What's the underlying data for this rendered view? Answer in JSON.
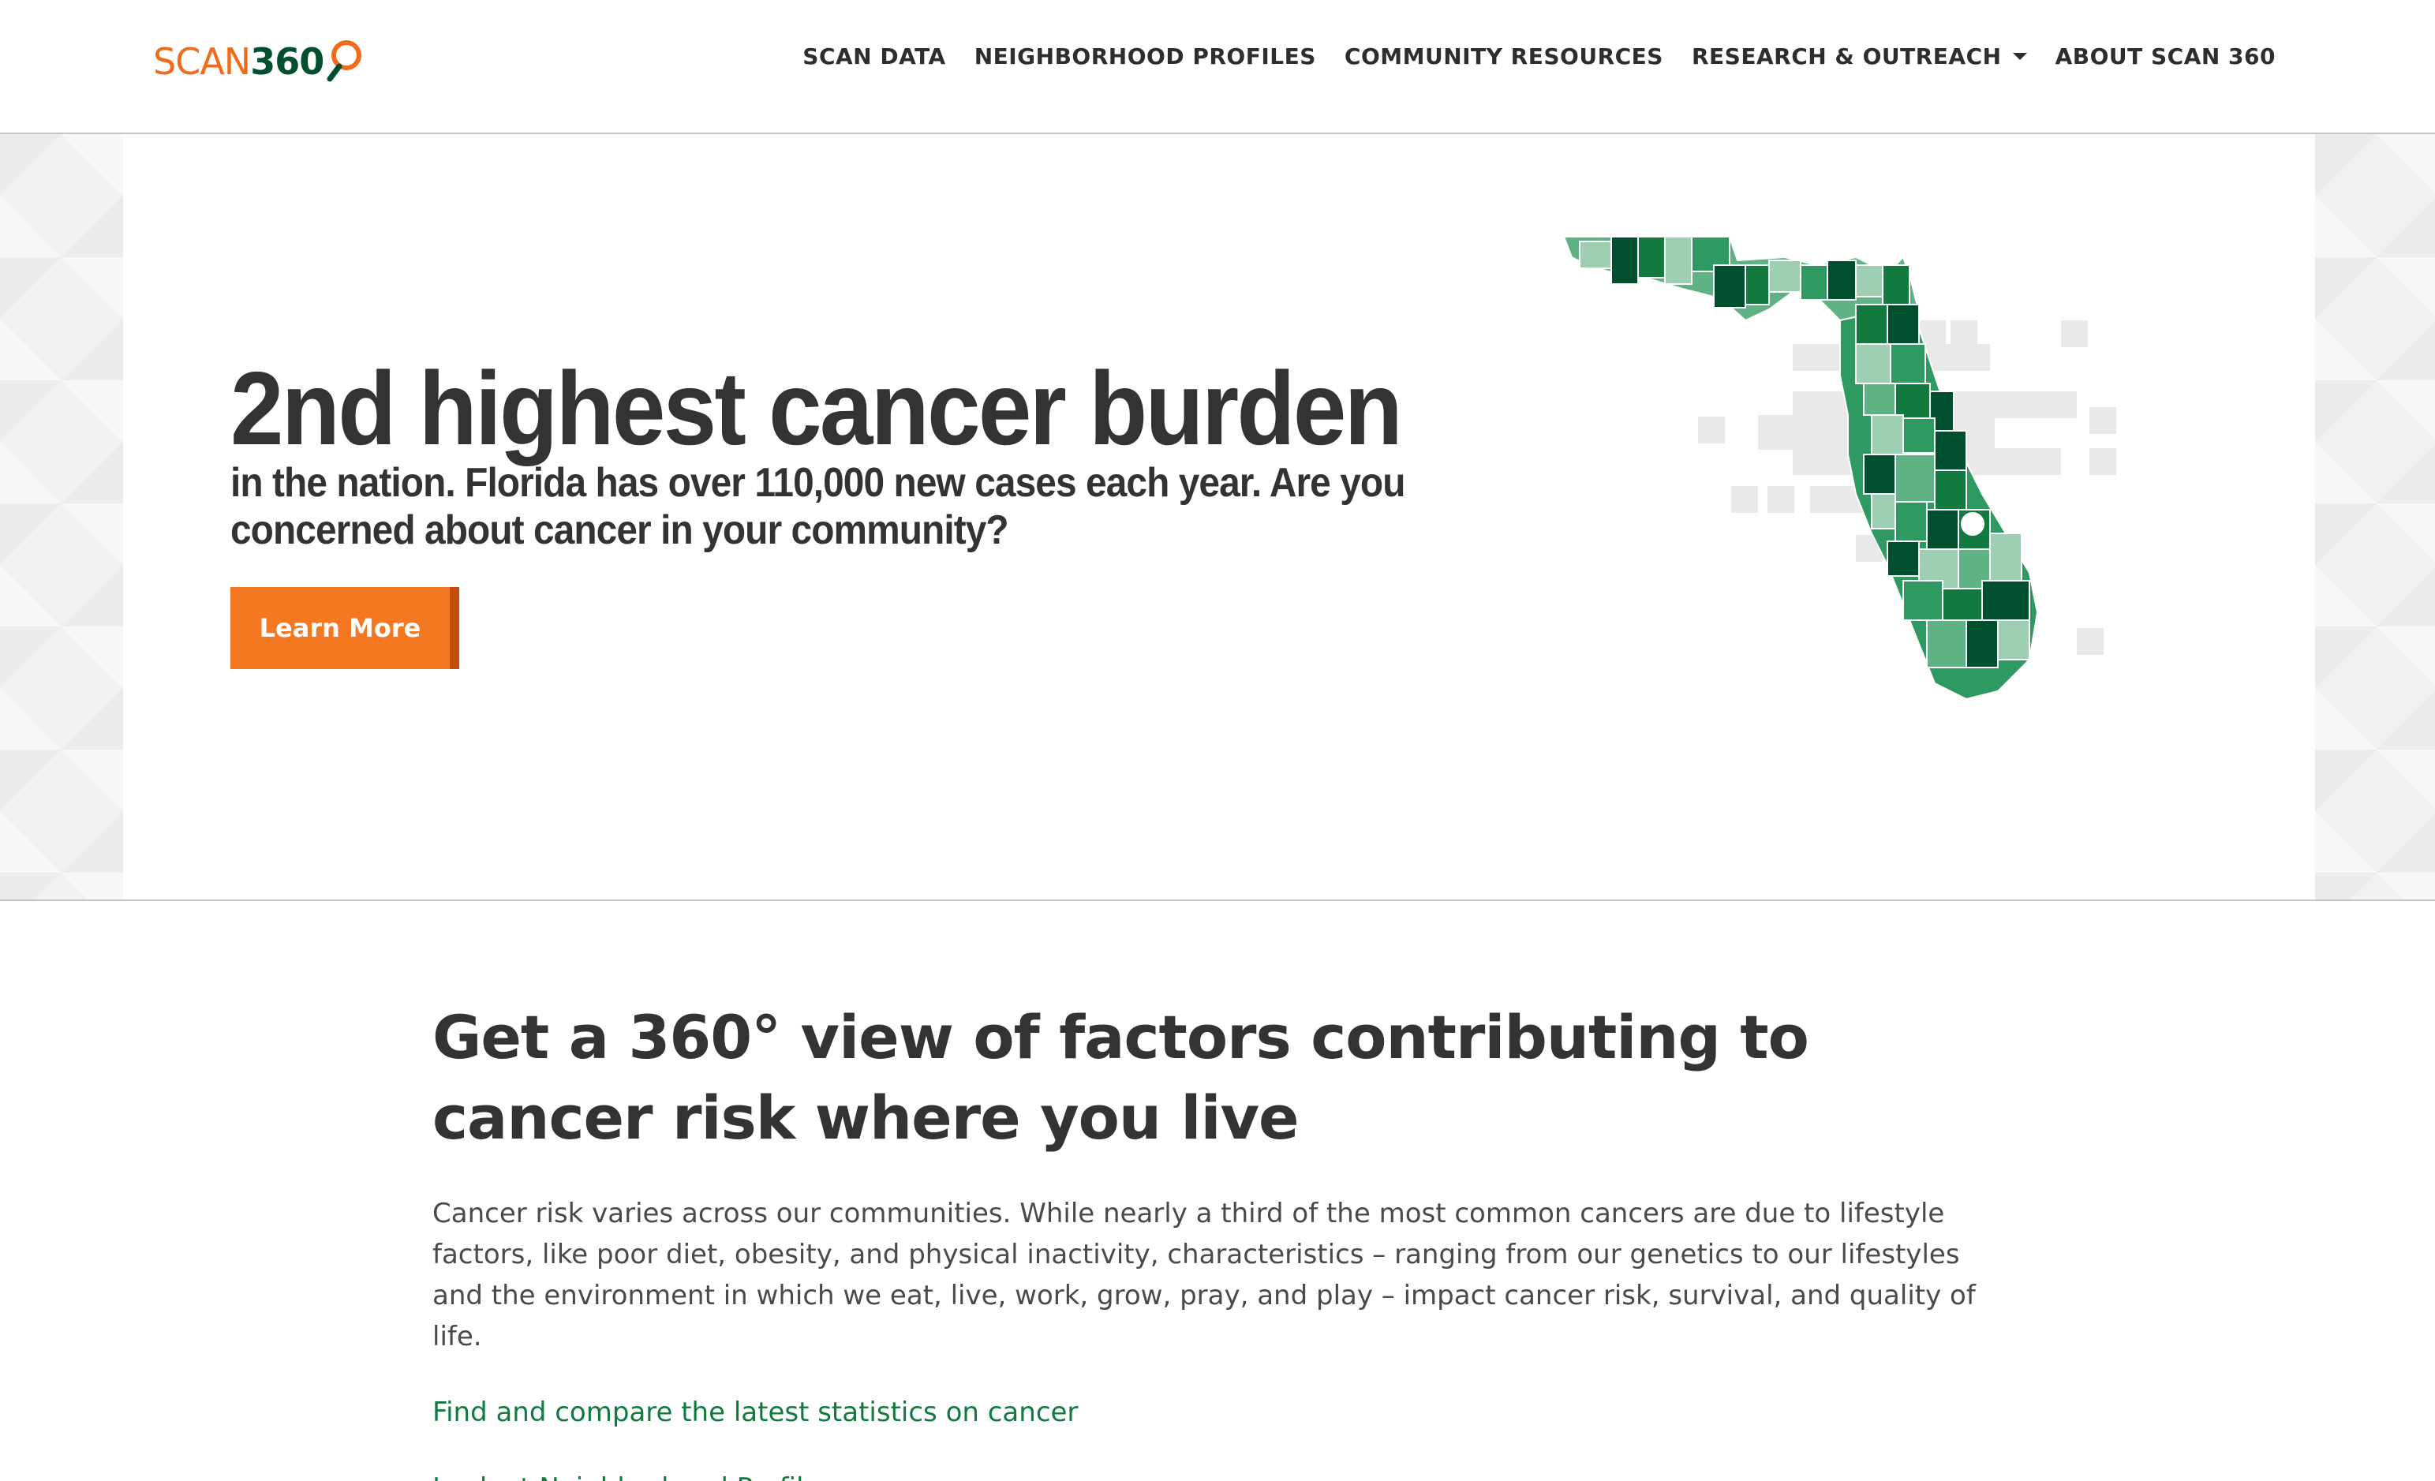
{
  "header": {
    "logo": {
      "word": "SCAN",
      "number": "360"
    },
    "nav": [
      {
        "label": "SCAN DATA",
        "has_dropdown": false
      },
      {
        "label": "NEIGHBORHOOD PROFILES",
        "has_dropdown": false
      },
      {
        "label": "COMMUNITY RESOURCES",
        "has_dropdown": false
      },
      {
        "label": "RESEARCH & OUTREACH",
        "has_dropdown": true
      },
      {
        "label": "ABOUT SCAN 360",
        "has_dropdown": false
      }
    ]
  },
  "hero": {
    "headline": "2nd highest cancer burden",
    "subheadline": "in the nation. Florida has over 110,000 new cases each year. Are you concerned about cancer in your community?",
    "cta_label": "Learn More",
    "map_alt": "Florida county map"
  },
  "content": {
    "title": "Get a 360° view of factors contributing to cancer risk where you live",
    "body": "Cancer risk varies across our communities. While nearly a third of the most common cancers are due to lifestyle factors, like poor diet, obesity, and physical inactivity, characteristics – ranging from our genetics to our lifestyles and the environment in which we eat, live, work, grow, pray, and play – impact cancer risk, survival, and quality of life.",
    "links": [
      "Find and compare the latest statistics on cancer",
      "Look at Neighborhood Profiles"
    ]
  },
  "colors": {
    "brand_orange": "#f47721",
    "brand_green": "#005030",
    "link_green": "#127a3e",
    "text_dark": "#333333",
    "map_greens": [
      "#9fcfb3",
      "#5fb283",
      "#2e9960",
      "#127a3e",
      "#005030"
    ]
  }
}
